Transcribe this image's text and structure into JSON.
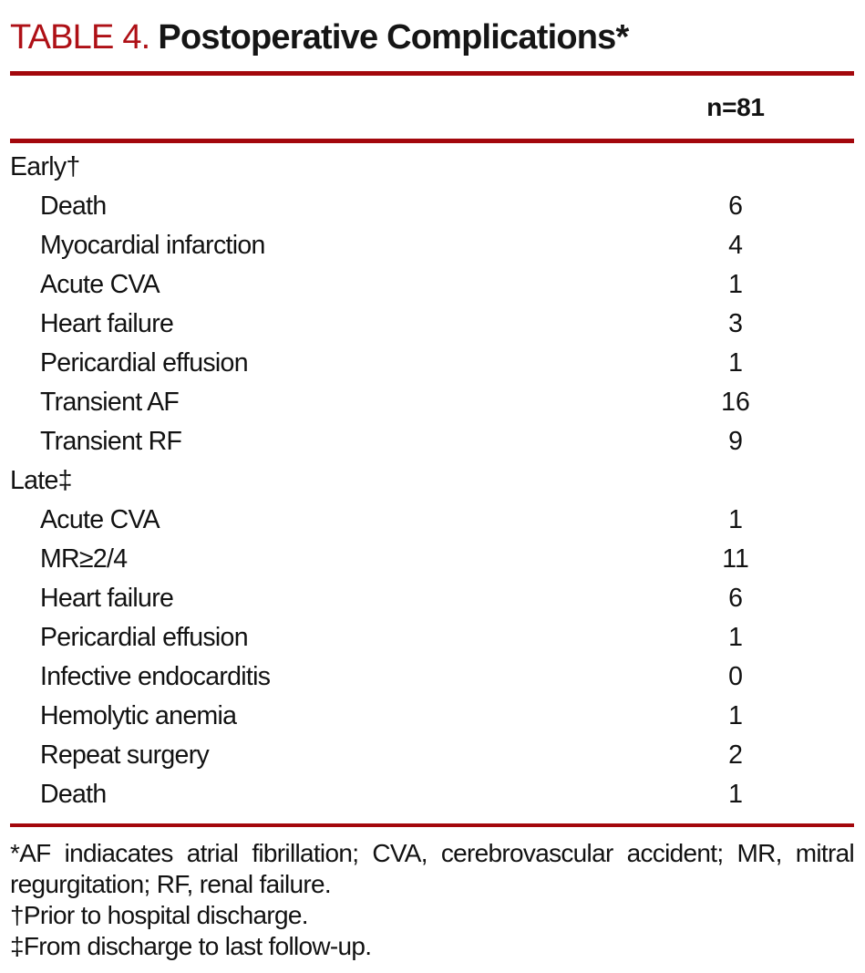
{
  "colors": {
    "title_label_red": "#ae1016",
    "rule_red": "#a3070c",
    "text_black": "#121212",
    "background": "#ffffff"
  },
  "header": {
    "label": "TABLE 4.",
    "title": "Postoperative Complications*"
  },
  "table": {
    "count_header": "n=81",
    "sections": [
      {
        "name": "Early†",
        "rows": [
          {
            "label": "Death",
            "value": "6"
          },
          {
            "label": "Myocardial infarction",
            "value": "4"
          },
          {
            "label": "Acute CVA",
            "value": "1"
          },
          {
            "label": "Heart failure",
            "value": "3"
          },
          {
            "label": "Pericardial effusion",
            "value": "1"
          },
          {
            "label": "Transient AF",
            "value": "16"
          },
          {
            "label": "Transient RF",
            "value": "9"
          }
        ]
      },
      {
        "name": "Late‡",
        "rows": [
          {
            "label": "Acute CVA",
            "value": "1"
          },
          {
            "label": "MR≥2/4",
            "value": "11"
          },
          {
            "label": "Heart failure",
            "value": "6"
          },
          {
            "label": "Pericardial effusion",
            "value": "1"
          },
          {
            "label": "Infective endocarditis",
            "value": "0"
          },
          {
            "label": "Hemolytic anemia",
            "value": "1"
          },
          {
            "label": "Repeat surgery",
            "value": "2"
          },
          {
            "label": "Death",
            "value": "1"
          }
        ]
      }
    ]
  },
  "footnotes": [
    "*AF indiacates atrial fibrillation; CVA, cerebrovascular accident; MR, mitral regurgitation; RF, renal failure.",
    "†Prior to hospital discharge.",
    "‡From discharge to last follow-up."
  ]
}
